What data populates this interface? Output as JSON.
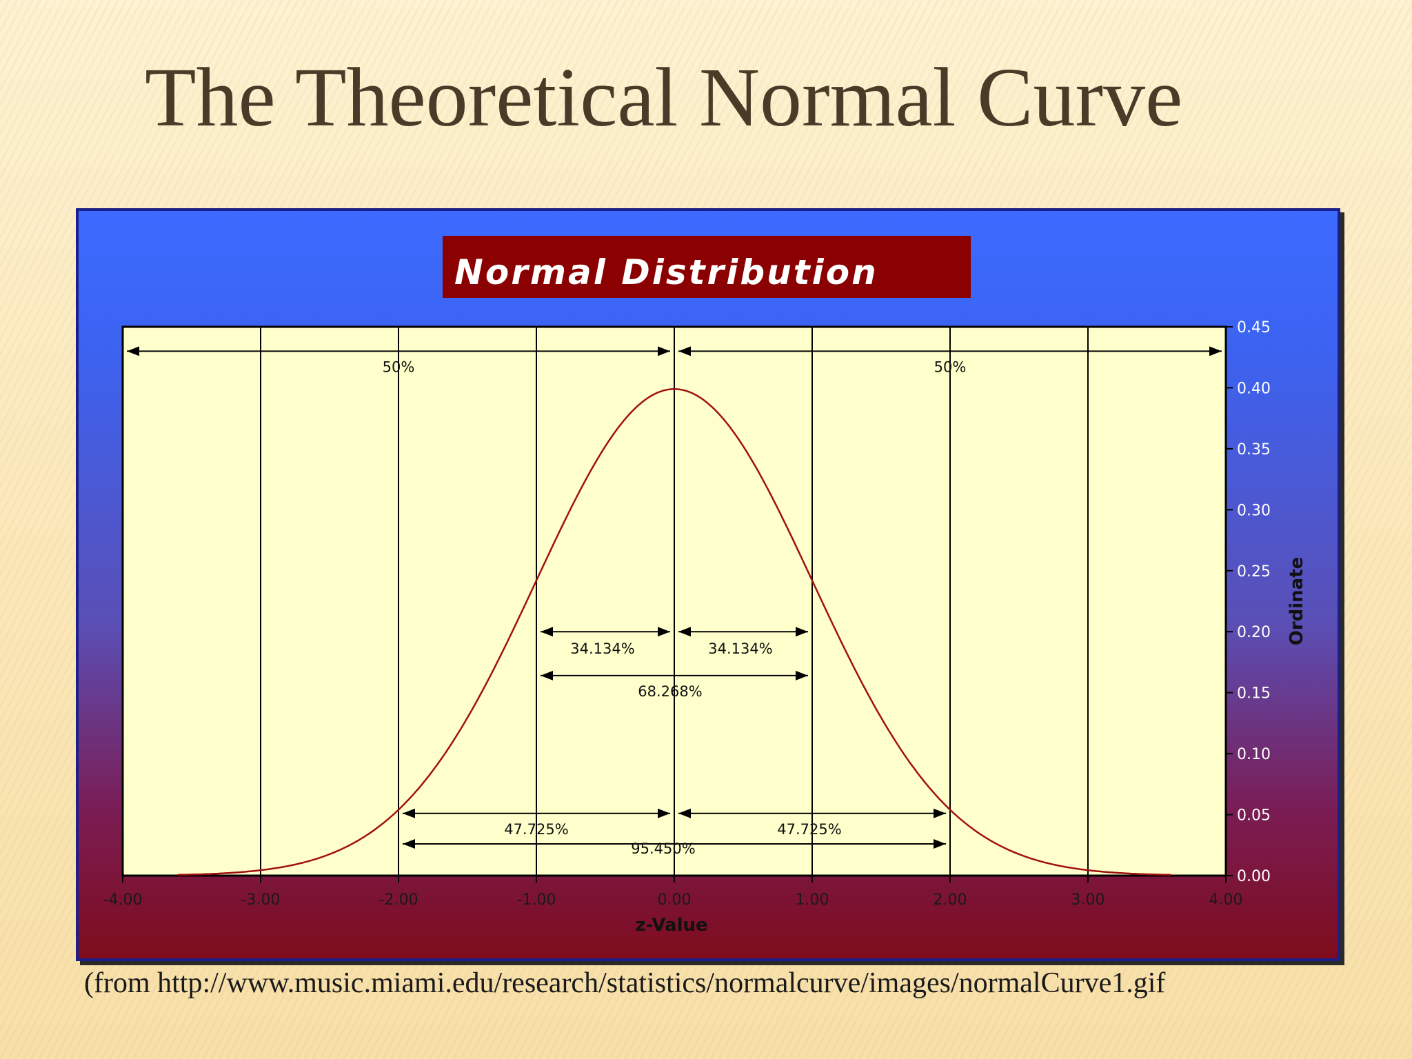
{
  "slide": {
    "title": "The Theoretical Normal Curve",
    "caption": "(from http://www.music.miami.edu/research/statistics/normalcurve/images/normalCurve1.gif"
  },
  "colors": {
    "plot_bg": "#ffffcc",
    "curve": "#a01010",
    "title_box": "#8b0000",
    "title_text": "#ffffff",
    "axis_text": "#ffffff",
    "grid": "#000000"
  },
  "chart_data": {
    "type": "line",
    "title": "Normal Distribution",
    "xlabel": "z-Value",
    "ylabel": "Ordinate",
    "xlim": [
      -4,
      4
    ],
    "ylim": [
      0,
      0.45
    ],
    "grid": true,
    "x_ticks": [
      "-4.00",
      "-3.00",
      "-2.00",
      "-1.00",
      "0.00",
      "1.00",
      "2.00",
      "3.00",
      "4.00"
    ],
    "y_ticks": [
      "0.00",
      "0.05",
      "0.10",
      "0.15",
      "0.20",
      "0.25",
      "0.30",
      "0.35",
      "0.40",
      "0.45"
    ],
    "series": [
      {
        "function": "standard normal density",
        "mean": 0,
        "sd": 1,
        "x_range": [
          -3.6,
          3.6
        ]
      }
    ],
    "annotations": [
      {
        "label": "50%",
        "x_from": -4,
        "x_to": 0,
        "y": 0.43,
        "label_x": -2,
        "label_y": 0.413
      },
      {
        "label": "50%",
        "x_from": 0,
        "x_to": 4,
        "y": 0.43,
        "label_x": 2,
        "label_y": 0.413
      },
      {
        "label": "34.134%",
        "x_from": -1,
        "x_to": 0,
        "y": 0.2,
        "label_x": -0.52,
        "label_y": 0.182
      },
      {
        "label": "34.134%",
        "x_from": 0,
        "x_to": 1,
        "y": 0.2,
        "label_x": 0.48,
        "label_y": 0.182
      },
      {
        "label": "68.268%",
        "x_from": -1,
        "x_to": 1,
        "y": 0.164,
        "label_x": -0.03,
        "label_y": 0.147
      },
      {
        "label": "47.725%",
        "x_from": -2,
        "x_to": 0,
        "y": 0.051,
        "label_x": -1.0,
        "label_y": 0.034
      },
      {
        "label": "47.725%",
        "x_from": 0,
        "x_to": 2,
        "y": 0.051,
        "label_x": 0.98,
        "label_y": 0.034
      },
      {
        "label": "95.450%",
        "x_from": -2,
        "x_to": 2,
        "y": 0.026,
        "label_x": -0.08,
        "label_y": 0.018
      }
    ]
  }
}
